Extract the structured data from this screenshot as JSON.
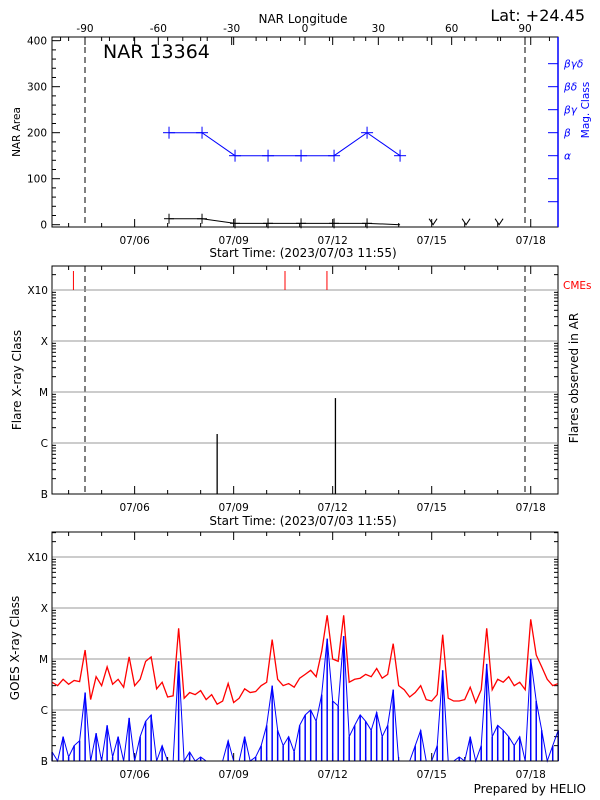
{
  "header": {
    "top_axis_label": "NAR Longitude",
    "latitude": "Lat: +24.45",
    "footer": "Prepared by HELIO"
  },
  "colors": {
    "mag_class": "#0000ff",
    "cme": "#ff0000",
    "goes_long": "#ff0000",
    "goes_short": "#0000ff",
    "grid": "#999999"
  },
  "chart_data": [
    {
      "type": "line",
      "title": "NAR 13364",
      "xlabel": "Start Time: (2023/07/03 11:55)",
      "ylabel": "NAR Area",
      "y2label": "Mag. Class",
      "xlim": [
        "2023/07/03 11:55",
        "2023/07/18 19:50"
      ],
      "ylim": [
        -5,
        408
      ],
      "yticks": [
        "0",
        "100",
        "200",
        "300",
        "400"
      ],
      "x_ticks": [
        "07/06",
        "07/09",
        "07/12",
        "07/15",
        "07/18"
      ],
      "longitude_ticks": [
        "-90",
        "-60",
        "-30",
        "0",
        "30",
        "60",
        "90"
      ],
      "longitude_range": [
        -103.5,
        103.5
      ],
      "limb_longitudes": [
        -90,
        90
      ],
      "mag_classes": [
        "α",
        "β",
        "βγ",
        "βδ",
        "βγδ"
      ],
      "area_series": {
        "times": [
          "07/07 01:00",
          "07/08 01:00",
          "07/09 01:00",
          "07/10 01:00",
          "07/11 01:00",
          "07/12 01:00",
          "07/13 01:00",
          "07/14 01:00",
          "07/15 01:00",
          "07/16 01:00",
          "07/17 01:00"
        ],
        "values": [
          13,
          13,
          3,
          3,
          3,
          3,
          3,
          0,
          0,
          0,
          0
        ],
        "below_range_from_index": 8
      },
      "mag_series": {
        "times": [
          "07/07 01:00",
          "07/08 01:00",
          "07/09 01:00",
          "07/10 01:00",
          "07/11 01:00",
          "07/12 01:00",
          "07/13 01:00",
          "07/14 01:00"
        ],
        "values": [
          "β",
          "β",
          "α",
          "α",
          "α",
          "α",
          "β",
          "α"
        ]
      }
    },
    {
      "type": "bar",
      "xlabel": "Start Time: (2023/07/03 11:55)",
      "ylabel": "Flare X-ray Class",
      "y2label": "Flares observed in AR",
      "cme_label": "CMEs",
      "xlim": [
        "2023/07/03 11:55",
        "2023/07/18 19:50"
      ],
      "class_ticks": [
        "B",
        "C",
        "M",
        "X",
        "X10"
      ],
      "x_ticks": [
        "07/06",
        "07/09",
        "07/12",
        "07/15",
        "07/18"
      ],
      "flares": [
        {
          "time": "07/08 12:00",
          "class": "C1.5"
        },
        {
          "time": "07/12 02:00",
          "class": "C7.6"
        }
      ],
      "cmes": [
        "07/04 03:30",
        "07/10 13:20",
        "07/11 19:50"
      ],
      "limb_longitudes": [
        -90,
        90
      ]
    },
    {
      "type": "line",
      "ylabel": "GOES X-ray Class",
      "xlim": [
        "2023/07/03 11:55",
        "2023/07/18 19:50"
      ],
      "class_ticks": [
        "B",
        "C",
        "M",
        "X",
        "X10"
      ],
      "x_ticks": [
        "07/06",
        "07/09",
        "07/12",
        "07/15",
        "07/18"
      ],
      "times": [
        "07/03 12:00",
        "07/03 16:00",
        "07/03 20:00",
        "07/04 00:00",
        "07/04 04:00",
        "07/04 08:00",
        "07/04 12:00",
        "07/04 16:00",
        "07/04 20:00",
        "07/05 00:00",
        "07/05 04:00",
        "07/05 08:00",
        "07/05 12:00",
        "07/05 16:00",
        "07/05 20:00",
        "07/06 00:00",
        "07/06 04:00",
        "07/06 08:00",
        "07/06 12:00",
        "07/06 16:00",
        "07/06 20:00",
        "07/07 00:00",
        "07/07 04:00",
        "07/07 08:00",
        "07/07 12:00",
        "07/07 16:00",
        "07/07 20:00",
        "07/08 00:00",
        "07/08 04:00",
        "07/08 08:00",
        "07/08 12:00",
        "07/08 16:00",
        "07/08 20:00",
        "07/09 00:00",
        "07/09 04:00",
        "07/09 08:00",
        "07/09 12:00",
        "07/09 16:00",
        "07/09 20:00",
        "07/10 00:00",
        "07/10 04:00",
        "07/10 08:00",
        "07/10 12:00",
        "07/10 16:00",
        "07/10 20:00",
        "07/11 00:00",
        "07/11 04:00",
        "07/11 08:00",
        "07/11 12:00",
        "07/11 16:00",
        "07/11 20:00",
        "07/12 00:00",
        "07/12 04:00",
        "07/12 08:00",
        "07/12 12:00",
        "07/12 16:00",
        "07/12 20:00",
        "07/13 00:00",
        "07/13 04:00",
        "07/13 08:00",
        "07/13 12:00",
        "07/13 16:00",
        "07/13 20:00",
        "07/14 00:00",
        "07/14 04:00",
        "07/14 08:00",
        "07/14 12:00",
        "07/14 16:00",
        "07/14 20:00",
        "07/15 00:00",
        "07/15 04:00",
        "07/15 08:00",
        "07/15 12:00",
        "07/15 16:00",
        "07/15 20:00",
        "07/16 00:00",
        "07/16 04:00",
        "07/16 08:00",
        "07/16 12:00",
        "07/16 16:00",
        "07/16 20:00",
        "07/17 00:00",
        "07/17 04:00",
        "07/17 08:00",
        "07/17 12:00",
        "07/17 16:00",
        "07/17 20:00",
        "07/18 00:00",
        "07/18 04:00",
        "07/18 08:00",
        "07/18 12:00",
        "07/18 16:00",
        "07/18 20:00"
      ],
      "series": [
        {
          "channel": "long",
          "values": [
            3.5e-06,
            3e-06,
            4e-06,
            3.2e-06,
            3.8e-06,
            3.6e-06,
            1.5e-05,
            1.6e-06,
            4.5e-06,
            3e-06,
            7e-06,
            3.2e-06,
            4e-06,
            2.8e-06,
            1.1e-05,
            3e-06,
            4e-06,
            9e-06,
            1.1e-05,
            2.6e-06,
            3.5e-06,
            1.8e-06,
            1.9e-06,
            4e-05,
            1.7e-06,
            2.2e-06,
            2e-06,
            2.4e-06,
            1.6e-06,
            2e-06,
            1.3e-06,
            1.5e-06,
            3.3e-06,
            1.4e-06,
            1.7e-06,
            2.6e-06,
            2.2e-06,
            2.3e-06,
            3e-06,
            3.5e-06,
            2.4e-05,
            4e-06,
            3e-06,
            3.3e-06,
            2.8e-06,
            4.2e-06,
            5e-06,
            6e-06,
            4.5e-06,
            1.4e-05,
            7.2e-05,
            1e-05,
            9e-06,
            7.2e-05,
            3.5e-06,
            4e-06,
            4.2e-06,
            5e-06,
            4.5e-06,
            6.5e-06,
            4.2e-06,
            5e-06,
            2e-05,
            3e-06,
            2.5e-06,
            1.8e-06,
            2.2e-06,
            3e-06,
            1.6e-06,
            1.5e-06,
            2e-06,
            3e-05,
            1.7e-06,
            1.5e-06,
            1.5e-06,
            1.6e-06,
            2.8e-06,
            1.4e-06,
            2.5e-06,
            4e-05,
            2.5e-06,
            4e-06,
            3.5e-06,
            4.5e-06,
            3e-06,
            3.5e-06,
            2.5e-06,
            6e-05,
            1.2e-05,
            7e-06,
            4e-06,
            3e-06,
            3.3e-06
          ]
        },
        {
          "channel": "short",
          "values": [
            1.5e-07,
            1e-07,
            3e-07,
            1.2e-07,
            2e-07,
            2.5e-07,
            2.2e-06,
            1e-07,
            3.5e-07,
            1e-07,
            5e-07,
            1.2e-07,
            3e-07,
            1e-07,
            7e-07,
            1e-07,
            3e-07,
            6e-07,
            8e-07,
            1e-07,
            2e-07,
            1e-07,
            1e-07,
            9e-06,
            1e-07,
            1.5e-07,
            1e-07,
            1.2e-07,
            1e-07,
            1e-07,
            1e-07,
            1e-07,
            2.5e-07,
            1e-07,
            1e-07,
            3e-07,
            1e-07,
            1.2e-07,
            2e-07,
            5e-07,
            3e-06,
            4e-07,
            2e-07,
            3e-07,
            1.5e-07,
            5e-07,
            8e-07,
            1e-06,
            6e-07,
            2e-06,
            2.5e-05,
            1.5e-06,
            1.2e-06,
            2.8e-05,
            3e-07,
            5e-07,
            8e-07,
            6e-07,
            4e-07,
            9e-07,
            3e-07,
            5e-07,
            2.5e-06,
            1e-07,
            1e-07,
            1e-07,
            2e-07,
            4e-07,
            1e-07,
            1e-07,
            2e-07,
            6e-06,
            1e-07,
            1e-07,
            1.2e-07,
            1e-07,
            3e-07,
            1e-07,
            2e-07,
            8e-06,
            3e-07,
            5e-07,
            4e-07,
            3e-07,
            2e-07,
            3e-07,
            1e-07,
            1e-05,
            1.5e-06,
            4e-07,
            1e-07,
            2e-07,
            4e-07
          ]
        }
      ]
    }
  ]
}
